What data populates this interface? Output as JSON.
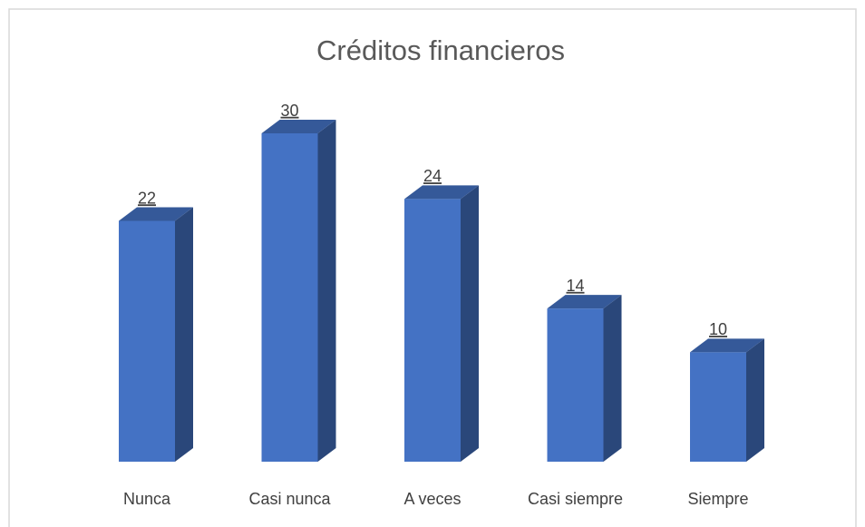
{
  "chart_data": {
    "type": "bar3d",
    "title": "Créditos financieros",
    "categories": [
      "Nunca",
      "Casi nunca",
      "A veces",
      "Casi siempre",
      "Siempre"
    ],
    "values": [
      22,
      30,
      24,
      14,
      10
    ],
    "color": "#4472c4",
    "grid": false
  }
}
